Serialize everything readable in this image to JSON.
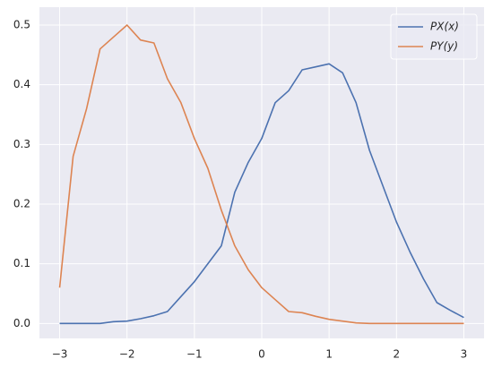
{
  "chart_data": {
    "type": "line",
    "x": [
      -3,
      -2.8,
      -2.6,
      -2.4,
      -2.2,
      -2,
      -1.8,
      -1.6,
      -1.4,
      -1.2,
      -1,
      -0.8,
      -0.6,
      -0.4,
      -0.2,
      0,
      0.2,
      0.4,
      0.6,
      0.8,
      1,
      1.2,
      1.4,
      1.6,
      1.8,
      2,
      2.2,
      2.4,
      2.6,
      2.8,
      3
    ],
    "series": [
      {
        "name": "PX(x)",
        "color": "#4c72b0",
        "values": [
          0,
          0,
          0,
          0,
          0.003,
          0.004,
          0.008,
          0.013,
          0.02,
          0.045,
          0.07,
          0.1,
          0.13,
          0.22,
          0.27,
          0.31,
          0.37,
          0.39,
          0.425,
          0.43,
          0.435,
          0.42,
          0.37,
          0.29,
          0.23,
          0.17,
          0.12,
          0.075,
          0.035,
          0.022,
          0.01
        ]
      },
      {
        "name": "PY(y)",
        "color": "#dd8452",
        "values": [
          0.06,
          0.28,
          0.36,
          0.46,
          0.48,
          0.5,
          0.475,
          0.47,
          0.41,
          0.37,
          0.31,
          0.26,
          0.19,
          0.13,
          0.09,
          0.06,
          0.04,
          0.02,
          0.018,
          0.012,
          0.007,
          0.004,
          0.001,
          0,
          0,
          0,
          0,
          0,
          0,
          0,
          0
        ]
      }
    ],
    "xlim": [
      -3.3,
      3.3
    ],
    "xticks": [
      {
        "value": -3,
        "label": "−3"
      },
      {
        "value": -2,
        "label": "−2"
      },
      {
        "value": -1,
        "label": "−1"
      },
      0,
      1,
      2,
      3
    ],
    "ylim": [
      -0.025,
      0.53
    ],
    "yticks": [
      {
        "value": 0,
        "label": "0.0"
      },
      0.1,
      0.2,
      0.3,
      0.4,
      0.5
    ],
    "grid": true,
    "legend": "upper right"
  }
}
